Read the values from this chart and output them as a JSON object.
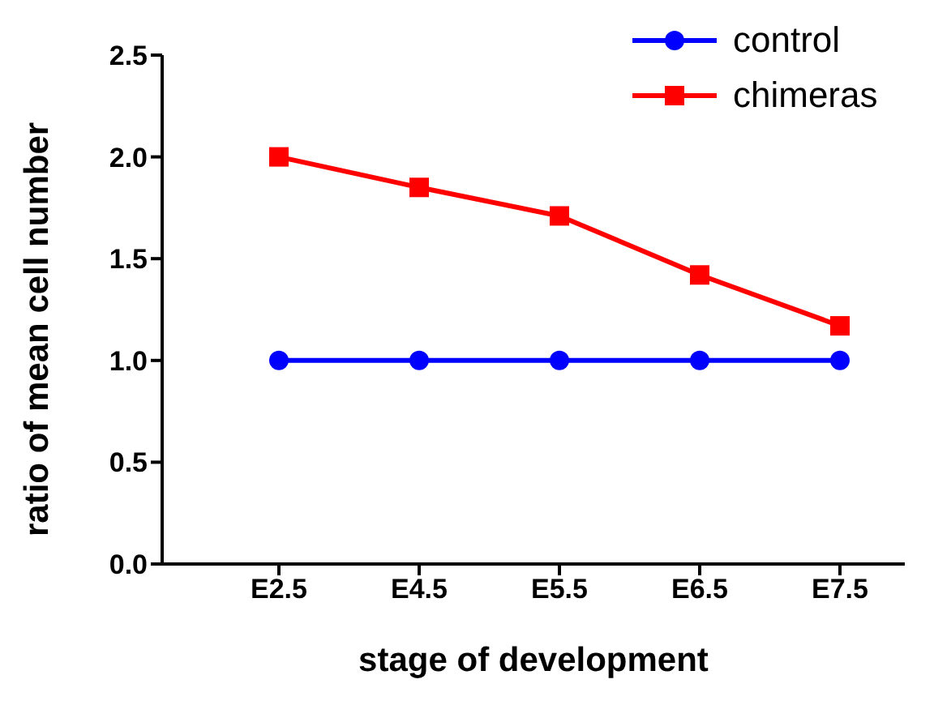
{
  "chart_data": {
    "type": "line",
    "xlabel": "stage of development",
    "ylabel": "ratio of mean cell number",
    "categories": [
      "E2.5",
      "E4.5",
      "E5.5",
      "E6.5",
      "E7.5"
    ],
    "series": [
      {
        "name": "control",
        "color": "#0000ff",
        "marker": "circle",
        "values": [
          1.0,
          1.0,
          1.0,
          1.0,
          1.0
        ]
      },
      {
        "name": "chimeras",
        "color": "#ff0000",
        "marker": "square",
        "values": [
          2.0,
          1.85,
          1.71,
          1.42,
          1.17
        ]
      }
    ],
    "ylim": [
      0,
      2.5
    ],
    "yticks": [
      {
        "value": 0,
        "label": "0.0"
      },
      0.5,
      {
        "value": 1,
        "label": "1.0"
      },
      1.5,
      {
        "value": 2,
        "label": "2.0"
      },
      2.5
    ],
    "legend": "top right",
    "grid": false,
    "line_style": "solid"
  }
}
